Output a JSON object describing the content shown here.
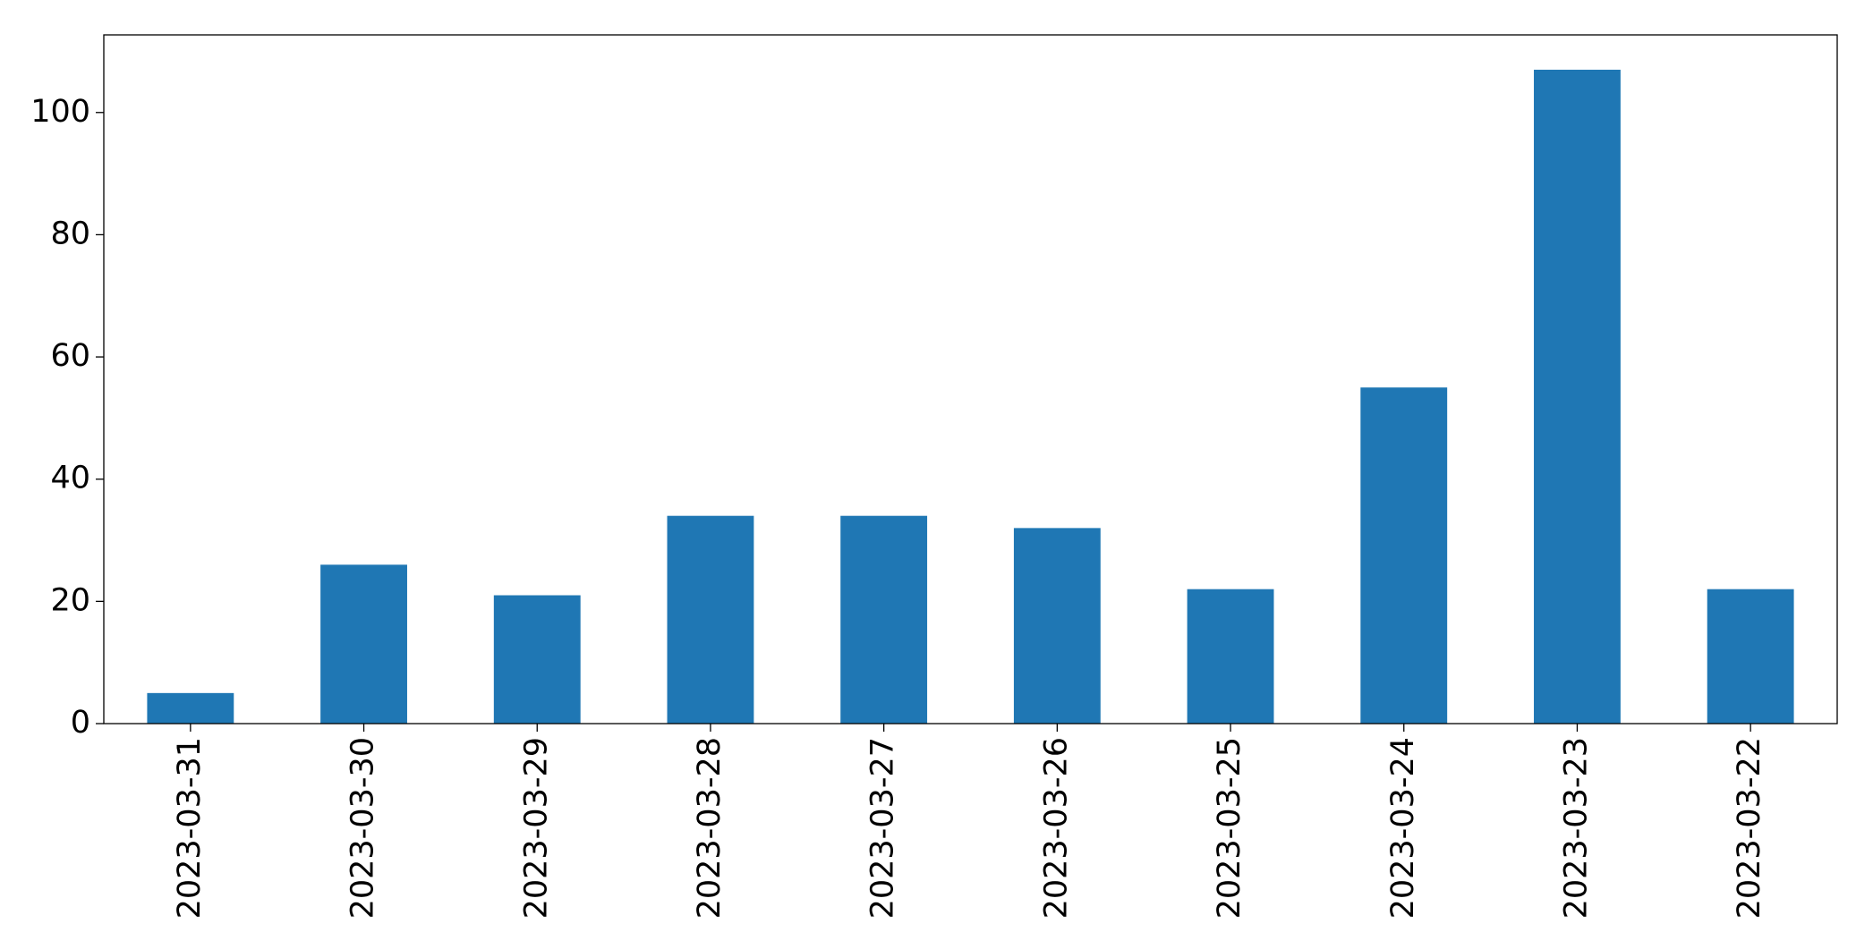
{
  "chart_data": {
    "type": "bar",
    "categories": [
      "2023-03-31",
      "2023-03-30",
      "2023-03-29",
      "2023-03-28",
      "2023-03-27",
      "2023-03-26",
      "2023-03-25",
      "2023-03-24",
      "2023-03-23",
      "2023-03-22"
    ],
    "values": [
      5,
      26,
      21,
      34,
      34,
      32,
      22,
      55,
      107,
      22
    ],
    "color": "#1f77b4",
    "ylim": [
      0,
      112.7
    ],
    "yticks": [
      0,
      20,
      40,
      60,
      80,
      100
    ],
    "grid": false
  }
}
